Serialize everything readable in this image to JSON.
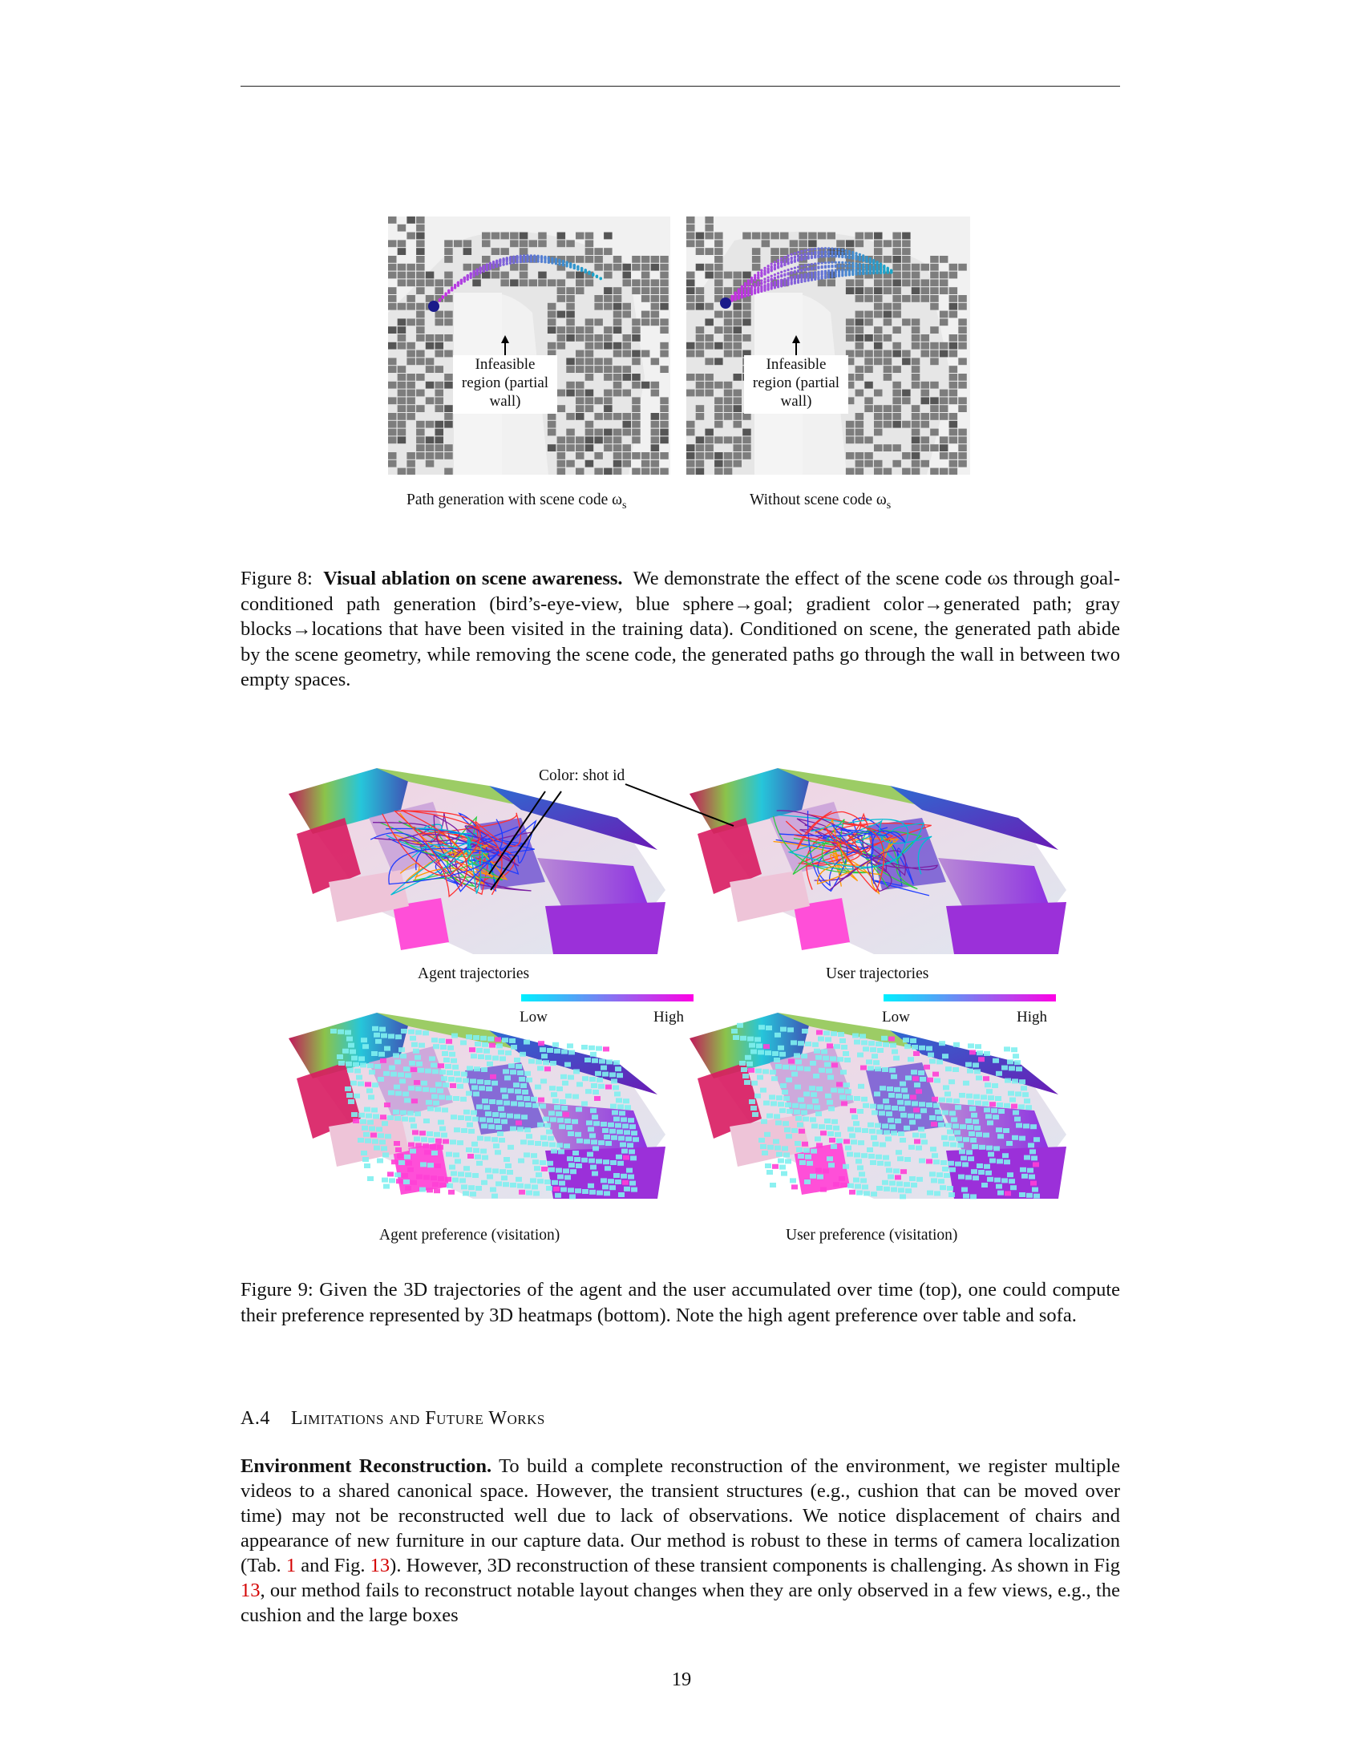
{
  "figure8": {
    "left_annotation": [
      "Infeasible",
      "region (partial",
      "wall)"
    ],
    "right_annotation": [
      "Infeasible",
      "region (partial",
      "wall)"
    ],
    "left_label": "Path generation with scene code ω",
    "left_label_sub": "s",
    "right_label": "Without scene code ω",
    "right_label_sub": "s",
    "caption_prefix": "Figure 8:",
    "caption_bold": "Visual ablation on scene awareness.",
    "caption_text": "We demonstrate the effect of the scene code ωs through goal-conditioned path generation (bird’s-eye-view, blue sphere→goal; gradient color→generated path; gray blocks→locations that have been visited in the training data). Conditioned on scene, the generated path abide by the scene geometry, while removing the scene code, the generated paths go through the wall in between two empty spaces."
  },
  "figure9": {
    "color_annotation": "Color: shot id",
    "agent_traj_label": "Agent trajectories",
    "user_traj_label": "User trajectories",
    "colorbar_low": "Low",
    "colorbar_high": "High",
    "agent_pref_label": "Agent preference (visitation)",
    "user_pref_label": "User preference (visitation)",
    "caption": "Figure 9: Given the 3D trajectories of the agent and the user accumulated over time (top), one could compute their preference represented by 3D heatmaps (bottom). Note the high agent preference over table and sofa."
  },
  "section": {
    "number": "A.4",
    "title": "Limitations and Future Works"
  },
  "paragraph": {
    "lead": "Environment Reconstruction.",
    "text_1": "To build a complete reconstruction of the environment, we register multiple videos to a shared canonical space. However, the transient structures (e.g., cushion that can be moved over time) may not be reconstructed well due to lack of observations. We notice displacement of chairs and appearance of new furniture in our capture data. Our method is robust to these in terms of camera localization (Tab.",
    "ref_1": "1",
    "text_2": "and Fig.",
    "ref_2": "13",
    "text_3": "). However, 3D reconstruction of these transient components is challenging. As shown in Fig",
    "ref_3": "13",
    "text_4": ", our method fails to reconstruct notable layout changes when they are only observed in a few views, e.g., the cushion and the large boxes"
  },
  "page_number": "19"
}
